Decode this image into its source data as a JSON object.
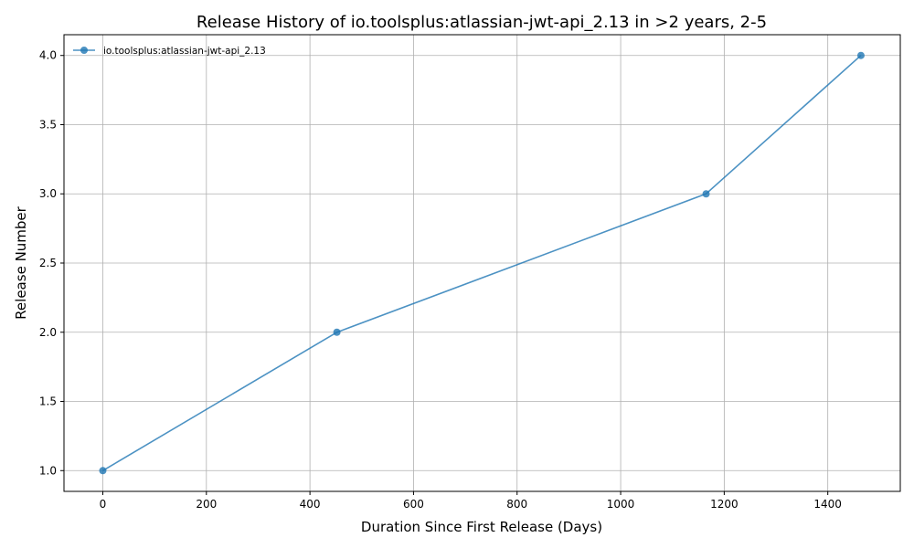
{
  "chart_data": {
    "type": "line",
    "title": "Release History of io.toolsplus:atlassian-jwt-api_2.13 in >2 years, 2-5",
    "xlabel": "Duration Since First Release (Days)",
    "ylabel": "Release Number",
    "xlim": [
      -75,
      1540
    ],
    "ylim": [
      0.85,
      4.15
    ],
    "xticks": [
      0,
      200,
      400,
      600,
      800,
      1000,
      1200,
      1400
    ],
    "yticks": [
      1.0,
      1.5,
      2.0,
      2.5,
      3.0,
      3.5,
      4.0
    ],
    "xtick_labels": [
      "0",
      "200",
      "400",
      "600",
      "800",
      "1000",
      "1200",
      "1400"
    ],
    "ytick_labels": [
      "1.0",
      "1.5",
      "2.0",
      "2.5",
      "3.0",
      "3.5",
      "4.0"
    ],
    "grid": true,
    "legend_position": "top-left",
    "series": [
      {
        "name": "io.toolsplus:atlassian-jwt-api_2.13",
        "color": "#1f77b4",
        "marker": "circle",
        "x": [
          0,
          452,
          1165,
          1464
        ],
        "y": [
          1,
          2,
          3,
          4
        ]
      }
    ]
  }
}
